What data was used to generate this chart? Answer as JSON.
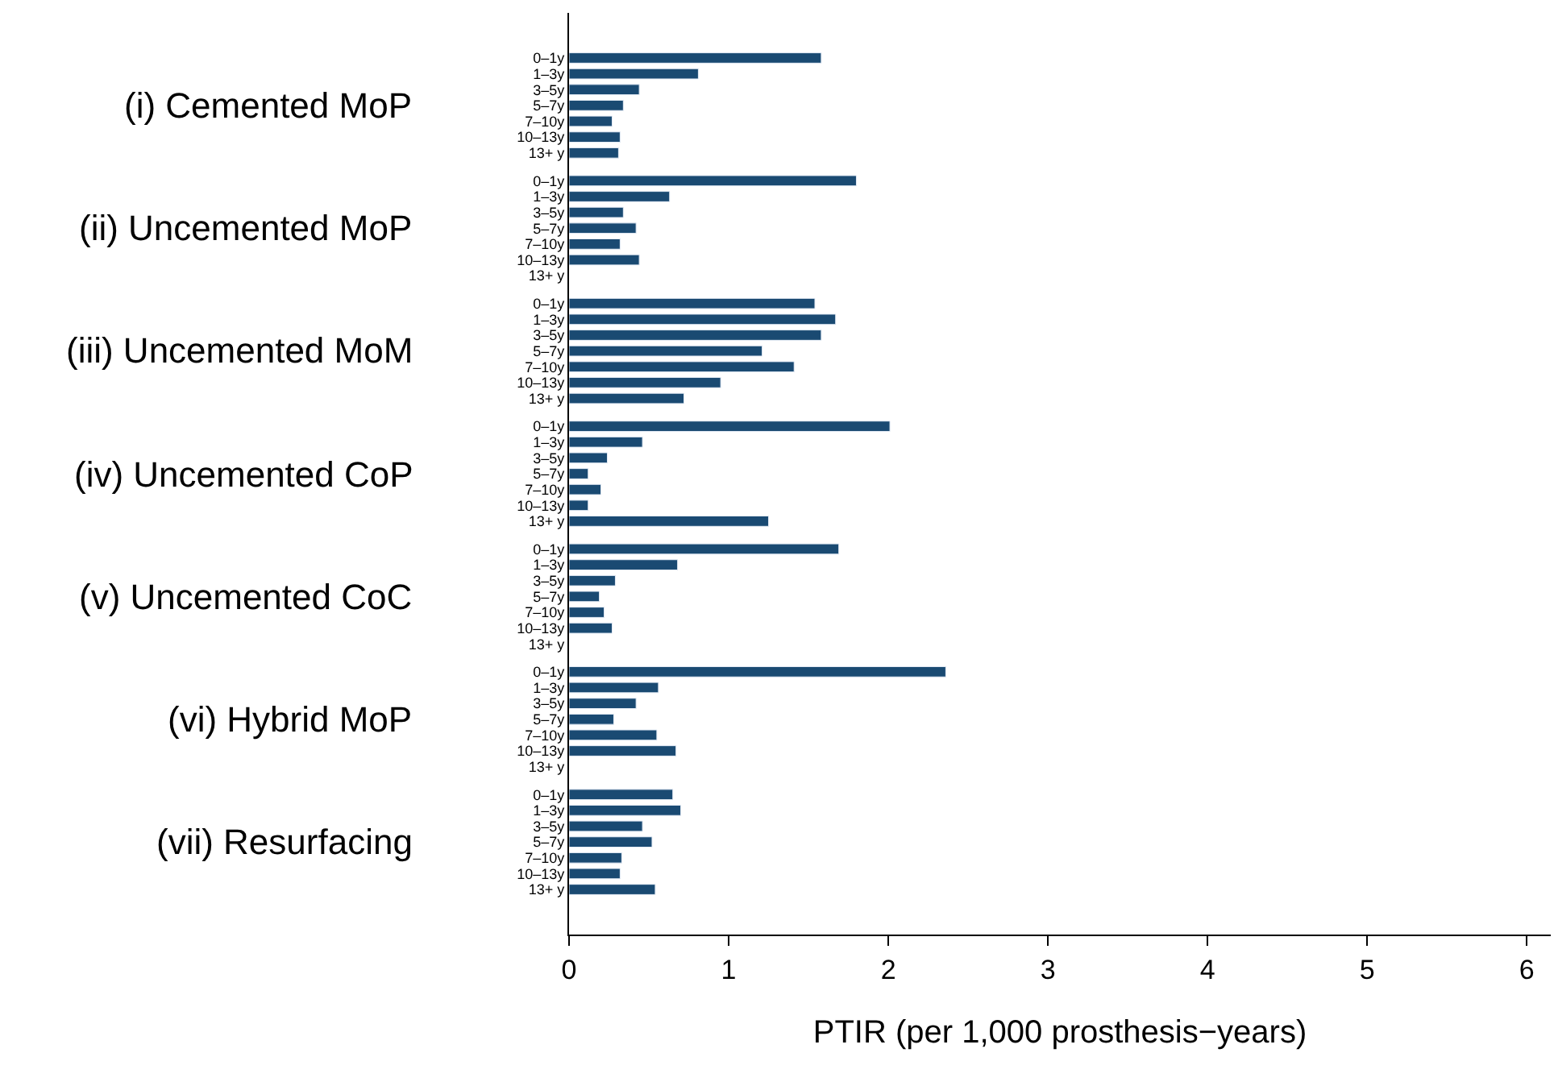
{
  "chart_data": {
    "type": "bar",
    "orientation": "horizontal",
    "xlabel": "PTIR (per 1,000 prosthesis−years)",
    "categories": [
      "0–1y",
      "1–3y",
      "3–5y",
      "5–7y",
      "7–10y",
      "10–13y",
      "13+ y",
      "0–1y",
      "1–3y",
      "3–5y",
      "5–7y",
      "7–10y",
      "10–13y",
      "13+ y",
      "0–1y",
      "1–3y",
      "3–5y",
      "5–7y",
      "7–10y",
      "10–13y",
      "13+ y",
      "0–1y",
      "1–3y",
      "3–5y",
      "5–7y",
      "7–10y",
      "10–13y",
      "13+ y",
      "0–1y",
      "1–3y",
      "3–5y",
      "5–7y",
      "7–10y",
      "10–13y",
      "13+ y",
      "0–1y",
      "1–3y",
      "3–5y",
      "5–7y",
      "7–10y",
      "10–13y",
      "13+ y",
      "0–1y",
      "1–3y",
      "3–5y",
      "5–7y",
      "7–10y",
      "10–13y",
      "13+ y"
    ],
    "values": [
      1.58,
      0.81,
      0.44,
      0.34,
      0.27,
      0.32,
      0.31,
      1.8,
      0.63,
      0.34,
      0.42,
      0.32,
      0.44,
      null,
      1.54,
      1.67,
      1.58,
      1.21,
      1.41,
      0.95,
      0.72,
      2.01,
      0.46,
      0.24,
      0.12,
      0.2,
      0.12,
      1.25,
      1.69,
      0.68,
      0.29,
      0.19,
      0.22,
      0.27,
      null,
      2.36,
      0.56,
      0.42,
      0.28,
      0.55,
      0.67,
      null,
      0.65,
      0.7,
      0.46,
      0.52,
      0.33,
      0.32,
      0.54
    ],
    "color": "#1a4a72",
    "annotations": [
      "(i) Cemented MoP",
      "(ii) Uncemented MoP",
      "(iii) Uncemented MoM",
      "(iv) Uncemented CoP",
      "(v) Uncemented CoC",
      "(vi) Hybrid MoP",
      "(vii) Resurfacing"
    ],
    "xlim": [
      0,
      6.15
    ],
    "xticks": [
      0,
      1,
      2,
      3,
      4,
      5,
      6
    ]
  }
}
